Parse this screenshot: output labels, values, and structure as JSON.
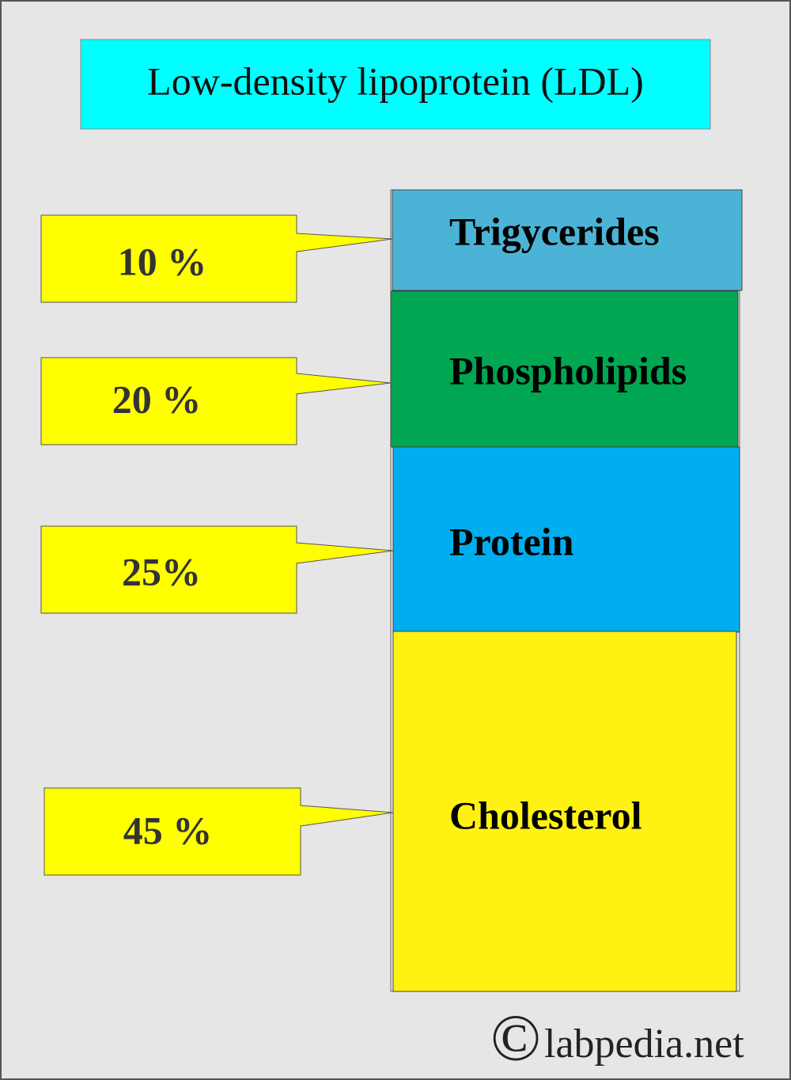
{
  "title": "Low-density lipoprotein (LDL)",
  "components": [
    {
      "label": "Trigycerides",
      "percent": "10 %"
    },
    {
      "label": "Phospholipids",
      "percent": "20 %"
    },
    {
      "label": "Protein",
      "percent": "25%"
    },
    {
      "label": "Cholesterol",
      "percent": "45 %"
    }
  ],
  "watermark": {
    "symbol": "©",
    "text": "labpedia.net"
  }
}
